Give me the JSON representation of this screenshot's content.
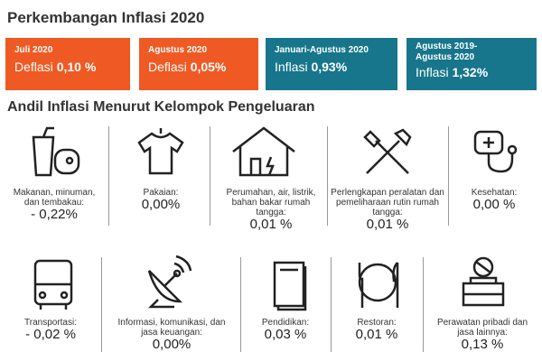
{
  "header": {
    "title": "Perkembangan Inflasi 2020"
  },
  "summary": [
    {
      "period": "Juli 2020",
      "status": "Deflasi",
      "value": "0,10 %"
    },
    {
      "period": "Agustus 2020",
      "status": "Deflasi",
      "value": "0,05%"
    },
    {
      "period": "Januari-Agustus 2020",
      "status": "Inflasi",
      "value": "0,93%"
    },
    {
      "period": "Agustus 2019-Agustus 2020",
      "status": "Inflasi",
      "value": "1,32%"
    }
  ],
  "section": {
    "title": "Andil Inflasi Menurut Kelompok Pengeluaran"
  },
  "groups": [
    {
      "label": "Makanan, minuman, dan tembakau:",
      "value": "- 0,22%"
    },
    {
      "label": "Pakaian:",
      "value": "0,00%"
    },
    {
      "label": "Perumahan, air, listrik, bahan bakar rumah tangga:",
      "value": "0,01 %"
    },
    {
      "label": "Perlengkapan peralatan dan pemeliharaan rutin rumah tangga:",
      "value": "0,01 %"
    },
    {
      "label": "Kesehatan:",
      "value": "0,00 %"
    },
    {
      "label": "Transportasi:",
      "value": "- 0,02 %"
    },
    {
      "label": "Informasi, komunikasi, dan jasa keuangan:",
      "value": "0,00%"
    },
    {
      "label": "Pendidikan:",
      "value": "0,03 %"
    },
    {
      "label": "Restoran:",
      "value": "0,01 %"
    },
    {
      "label": "Perawatan pribadi dan jasa lainnya:",
      "value": "0,13 %"
    }
  ]
}
